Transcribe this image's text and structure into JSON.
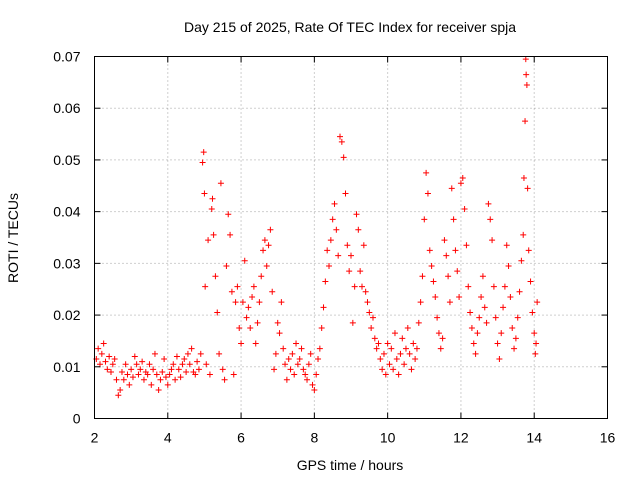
{
  "chart_data": {
    "type": "scatter",
    "title": "Day 215 of 2025, Rate Of TEC Index for receiver spja",
    "xlabel": "GPS time / hours",
    "ylabel": "ROTI / TECUs",
    "xlim": [
      2,
      16
    ],
    "ylim": [
      0,
      0.07
    ],
    "xticks": [
      2,
      4,
      6,
      8,
      10,
      12,
      14,
      16
    ],
    "yticks": [
      0,
      0.01,
      0.02,
      0.03,
      0.04,
      0.05,
      0.06,
      0.07
    ],
    "xtick_labels": [
      "2",
      "4",
      "6",
      "8",
      "10",
      "12",
      "14",
      "16"
    ],
    "ytick_labels": [
      "0",
      "0.01",
      "0.02",
      "0.03",
      "0.04",
      "0.05",
      "0.06",
      "0.07"
    ],
    "grid": true,
    "marker": "+",
    "color": "#ff0000",
    "series": [
      {
        "name": "ROTI",
        "points": [
          [
            2.05,
            0.0115
          ],
          [
            2.1,
            0.0135
          ],
          [
            2.15,
            0.0105
          ],
          [
            2.2,
            0.0125
          ],
          [
            2.25,
            0.0145
          ],
          [
            2.3,
            0.011
          ],
          [
            2.35,
            0.0095
          ],
          [
            2.4,
            0.012
          ],
          [
            2.45,
            0.009
          ],
          [
            2.5,
            0.0105
          ],
          [
            2.55,
            0.0115
          ],
          [
            2.6,
            0.0075
          ],
          [
            2.65,
            0.0045
          ],
          [
            2.7,
            0.0055
          ],
          [
            2.75,
            0.009
          ],
          [
            2.8,
            0.0075
          ],
          [
            2.85,
            0.0105
          ],
          [
            2.9,
            0.0085
          ],
          [
            2.95,
            0.0065
          ],
          [
            3.0,
            0.0095
          ],
          [
            3.05,
            0.008
          ],
          [
            3.1,
            0.012
          ],
          [
            3.15,
            0.0105
          ],
          [
            3.2,
            0.0085
          ],
          [
            3.25,
            0.0095
          ],
          [
            3.3,
            0.011
          ],
          [
            3.35,
            0.0075
          ],
          [
            3.4,
            0.009
          ],
          [
            3.45,
            0.0085
          ],
          [
            3.5,
            0.0105
          ],
          [
            3.55,
            0.0065
          ],
          [
            3.6,
            0.0095
          ],
          [
            3.65,
            0.0125
          ],
          [
            3.7,
            0.0085
          ],
          [
            3.75,
            0.0055
          ],
          [
            3.8,
            0.0075
          ],
          [
            3.85,
            0.009
          ],
          [
            3.9,
            0.0115
          ],
          [
            3.95,
            0.008
          ],
          [
            4.0,
            0.0065
          ],
          [
            4.05,
            0.0085
          ],
          [
            4.1,
            0.0095
          ],
          [
            4.15,
            0.0105
          ],
          [
            4.2,
            0.0075
          ],
          [
            4.25,
            0.012
          ],
          [
            4.3,
            0.0095
          ],
          [
            4.35,
            0.008
          ],
          [
            4.4,
            0.0105
          ],
          [
            4.45,
            0.0115
          ],
          [
            4.5,
            0.009
          ],
          [
            4.55,
            0.0125
          ],
          [
            4.6,
            0.0105
          ],
          [
            4.65,
            0.0135
          ],
          [
            4.7,
            0.009
          ],
          [
            4.75,
            0.0085
          ],
          [
            4.8,
            0.011
          ],
          [
            4.85,
            0.0095
          ],
          [
            4.9,
            0.0125
          ],
          [
            4.95,
            0.0495
          ],
          [
            4.98,
            0.0515
          ],
          [
            5.0,
            0.0435
          ],
          [
            5.02,
            0.0255
          ],
          [
            5.05,
            0.0105
          ],
          [
            5.1,
            0.0345
          ],
          [
            5.15,
            0.0085
          ],
          [
            5.2,
            0.0405
          ],
          [
            5.22,
            0.0425
          ],
          [
            5.25,
            0.0355
          ],
          [
            5.3,
            0.0275
          ],
          [
            5.35,
            0.0205
          ],
          [
            5.4,
            0.0125
          ],
          [
            5.45,
            0.0455
          ],
          [
            5.5,
            0.0095
          ],
          [
            5.55,
            0.0075
          ],
          [
            5.6,
            0.0295
          ],
          [
            5.65,
            0.0395
          ],
          [
            5.7,
            0.0355
          ],
          [
            5.75,
            0.0245
          ],
          [
            5.8,
            0.0085
          ],
          [
            5.85,
            0.0225
          ],
          [
            5.9,
            0.0255
          ],
          [
            5.95,
            0.0175
          ],
          [
            6.0,
            0.0145
          ],
          [
            6.05,
            0.0225
          ],
          [
            6.1,
            0.0305
          ],
          [
            6.15,
            0.0195
          ],
          [
            6.2,
            0.0215
          ],
          [
            6.25,
            0.0175
          ],
          [
            6.3,
            0.0235
          ],
          [
            6.35,
            0.0255
          ],
          [
            6.4,
            0.0145
          ],
          [
            6.45,
            0.0185
          ],
          [
            6.5,
            0.0225
          ],
          [
            6.55,
            0.0275
          ],
          [
            6.6,
            0.0325
          ],
          [
            6.65,
            0.0345
          ],
          [
            6.7,
            0.0295
          ],
          [
            6.75,
            0.0335
          ],
          [
            6.8,
            0.0365
          ],
          [
            6.85,
            0.0245
          ],
          [
            6.9,
            0.0095
          ],
          [
            6.95,
            0.0125
          ],
          [
            7.0,
            0.0185
          ],
          [
            7.05,
            0.0165
          ],
          [
            7.1,
            0.0225
          ],
          [
            7.15,
            0.0135
          ],
          [
            7.2,
            0.0105
          ],
          [
            7.25,
            0.0075
          ],
          [
            7.3,
            0.0115
          ],
          [
            7.35,
            0.0095
          ],
          [
            7.4,
            0.0125
          ],
          [
            7.45,
            0.0085
          ],
          [
            7.5,
            0.0145
          ],
          [
            7.55,
            0.0105
          ],
          [
            7.6,
            0.0115
          ],
          [
            7.65,
            0.0135
          ],
          [
            7.7,
            0.0095
          ],
          [
            7.75,
            0.0085
          ],
          [
            7.8,
            0.0075
          ],
          [
            7.85,
            0.0105
          ],
          [
            7.9,
            0.0125
          ],
          [
            7.95,
            0.0065
          ],
          [
            8.0,
            0.0055
          ],
          [
            8.05,
            0.0085
          ],
          [
            8.1,
            0.0115
          ],
          [
            8.15,
            0.0135
          ],
          [
            8.2,
            0.0175
          ],
          [
            8.25,
            0.0215
          ],
          [
            8.3,
            0.0265
          ],
          [
            8.35,
            0.0325
          ],
          [
            8.4,
            0.0295
          ],
          [
            8.45,
            0.0345
          ],
          [
            8.5,
            0.0385
          ],
          [
            8.55,
            0.0415
          ],
          [
            8.6,
            0.0365
          ],
          [
            8.65,
            0.0315
          ],
          [
            8.7,
            0.0545
          ],
          [
            8.75,
            0.0535
          ],
          [
            8.8,
            0.0505
          ],
          [
            8.85,
            0.0435
          ],
          [
            8.9,
            0.0335
          ],
          [
            8.95,
            0.0285
          ],
          [
            9.0,
            0.0315
          ],
          [
            9.05,
            0.0185
          ],
          [
            9.1,
            0.0255
          ],
          [
            9.15,
            0.0395
          ],
          [
            9.2,
            0.0365
          ],
          [
            9.25,
            0.0285
          ],
          [
            9.3,
            0.0255
          ],
          [
            9.35,
            0.0335
          ],
          [
            9.4,
            0.0245
          ],
          [
            9.45,
            0.0225
          ],
          [
            9.5,
            0.0205
          ],
          [
            9.55,
            0.0175
          ],
          [
            9.6,
            0.0195
          ],
          [
            9.65,
            0.0155
          ],
          [
            9.7,
            0.0135
          ],
          [
            9.75,
            0.0145
          ],
          [
            9.8,
            0.0115
          ],
          [
            9.85,
            0.0095
          ],
          [
            9.9,
            0.0125
          ],
          [
            9.95,
            0.0085
          ],
          [
            10.0,
            0.0145
          ],
          [
            10.05,
            0.0105
          ],
          [
            10.1,
            0.0135
          ],
          [
            10.15,
            0.0095
          ],
          [
            10.2,
            0.0165
          ],
          [
            10.25,
            0.0115
          ],
          [
            10.3,
            0.0085
          ],
          [
            10.35,
            0.0125
          ],
          [
            10.4,
            0.0155
          ],
          [
            10.45,
            0.0105
          ],
          [
            10.5,
            0.0135
          ],
          [
            10.55,
            0.0175
          ],
          [
            10.6,
            0.0125
          ],
          [
            10.65,
            0.0095
          ],
          [
            10.7,
            0.0145
          ],
          [
            10.75,
            0.0115
          ],
          [
            10.8,
            0.0135
          ],
          [
            10.85,
            0.0185
          ],
          [
            10.9,
            0.0225
          ],
          [
            10.95,
            0.0275
          ],
          [
            11.0,
            0.0385
          ],
          [
            11.05,
            0.0475
          ],
          [
            11.1,
            0.0435
          ],
          [
            11.15,
            0.0325
          ],
          [
            11.2,
            0.0295
          ],
          [
            11.25,
            0.0265
          ],
          [
            11.3,
            0.0235
          ],
          [
            11.35,
            0.0195
          ],
          [
            11.4,
            0.0165
          ],
          [
            11.45,
            0.0135
          ],
          [
            11.5,
            0.0155
          ],
          [
            11.55,
            0.0345
          ],
          [
            11.6,
            0.0315
          ],
          [
            11.65,
            0.0275
          ],
          [
            11.7,
            0.0225
          ],
          [
            11.75,
            0.0445
          ],
          [
            11.8,
            0.0385
          ],
          [
            11.85,
            0.0325
          ],
          [
            11.9,
            0.0285
          ],
          [
            11.95,
            0.0235
          ],
          [
            12.0,
            0.0455
          ],
          [
            12.05,
            0.0465
          ],
          [
            12.1,
            0.0405
          ],
          [
            12.15,
            0.0335
          ],
          [
            12.2,
            0.0255
          ],
          [
            12.25,
            0.0205
          ],
          [
            12.3,
            0.0175
          ],
          [
            12.35,
            0.0145
          ],
          [
            12.4,
            0.0125
          ],
          [
            12.45,
            0.0165
          ],
          [
            12.5,
            0.0195
          ],
          [
            12.55,
            0.0235
          ],
          [
            12.6,
            0.0275
          ],
          [
            12.65,
            0.0215
          ],
          [
            12.7,
            0.0185
          ],
          [
            12.75,
            0.0415
          ],
          [
            12.8,
            0.0385
          ],
          [
            12.85,
            0.0345
          ],
          [
            12.9,
            0.0255
          ],
          [
            12.95,
            0.0195
          ],
          [
            13.0,
            0.0145
          ],
          [
            13.05,
            0.0115
          ],
          [
            13.1,
            0.0165
          ],
          [
            13.15,
            0.0215
          ],
          [
            13.2,
            0.0255
          ],
          [
            13.25,
            0.0335
          ],
          [
            13.3,
            0.0295
          ],
          [
            13.35,
            0.0235
          ],
          [
            13.4,
            0.0175
          ],
          [
            13.45,
            0.0135
          ],
          [
            13.5,
            0.0155
          ],
          [
            13.55,
            0.0195
          ],
          [
            13.6,
            0.0245
          ],
          [
            13.65,
            0.0305
          ],
          [
            13.7,
            0.0355
          ],
          [
            13.72,
            0.0465
          ],
          [
            13.75,
            0.0575
          ],
          [
            13.77,
            0.0695
          ],
          [
            13.78,
            0.0665
          ],
          [
            13.8,
            0.0645
          ],
          [
            13.82,
            0.0445
          ],
          [
            13.85,
            0.0325
          ],
          [
            13.9,
            0.0265
          ],
          [
            13.95,
            0.0205
          ],
          [
            14.0,
            0.0165
          ],
          [
            14.03,
            0.0125
          ],
          [
            14.05,
            0.0145
          ],
          [
            14.08,
            0.0225
          ]
        ]
      }
    ]
  }
}
